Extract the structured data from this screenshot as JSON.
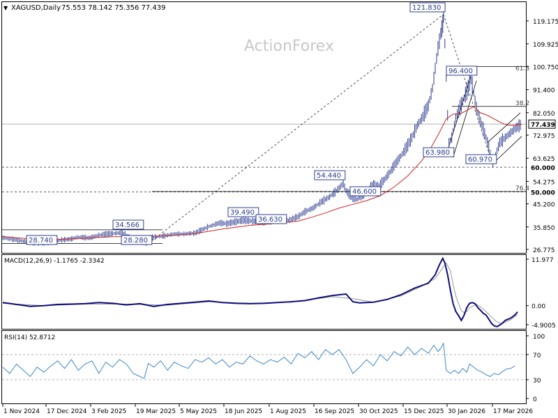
{
  "header": {
    "symbol_label": "XAGUSD,Daily",
    "ohlc_text": "75.553 78.142 75.356 77.439"
  },
  "watermark": "ActionForex",
  "colors": {
    "price": "#2c3b8f",
    "sma": "#cc2222",
    "macd": "#0d0d7a",
    "signal": "#999999",
    "rsi": "#3a86c8",
    "grid": "#888888",
    "label_bg": "#ffffff",
    "label_border": "#2c3b8f"
  },
  "chart_data": [
    {
      "type": "line",
      "panel": "price",
      "x_ticks": [
        "1 Nov 2024",
        "17 Dec 2024",
        "3 Feb 2025",
        "19 Mar 2025",
        "5 May 2025",
        "18 Jun 2025",
        "1 Aug 2025",
        "16 Sep 2025",
        "30 Oct 2025",
        "15 Dec 2025",
        "30 Jan 2026",
        "17 Mar 2026"
      ],
      "y_ticks": [
        "119.175",
        "109.925",
        "100.750",
        "91.400",
        "82.050",
        "72.975",
        "63.625",
        "54.275",
        "45.200",
        "35.850",
        "26.775"
      ],
      "ylim": [
        26.775,
        123
      ],
      "current_price": "77.439",
      "level_labels": [
        "60.000",
        "50.000"
      ],
      "fib_labels": [
        "61.8",
        "38.2",
        "76.4"
      ],
      "annotations": [
        "121.830",
        "96.400",
        "63.980",
        "60.970",
        "54.440",
        "46.600",
        "39.490",
        "36.630",
        "34.566",
        "28.740",
        "28.280"
      ],
      "price_path": [
        [
          0,
          31.5
        ],
        [
          10,
          30.6
        ],
        [
          20,
          29.6
        ],
        [
          30,
          29.2
        ],
        [
          40,
          30.4
        ],
        [
          50,
          31.0
        ],
        [
          55,
          31.8
        ],
        [
          63,
          31.4
        ],
        [
          70,
          32.5
        ],
        [
          78,
          33.1
        ],
        [
          87,
          33.5
        ],
        [
          95,
          31.0
        ],
        [
          100,
          30.0
        ],
        [
          103,
          29.4
        ],
        [
          106,
          31.5
        ],
        [
          115,
          32.0
        ],
        [
          125,
          33.0
        ],
        [
          132,
          33.0
        ],
        [
          140,
          33.4
        ],
        [
          150,
          36.0
        ],
        [
          158,
          37.5
        ],
        [
          163,
          37.2
        ],
        [
          170,
          38.0
        ],
        [
          175,
          38.5
        ],
        [
          183,
          38.2
        ],
        [
          190,
          37.8
        ],
        [
          197,
          38.4
        ],
        [
          203,
          38.9
        ],
        [
          208,
          38.5
        ],
        [
          215,
          40.0
        ],
        [
          220,
          42.0
        ],
        [
          226,
          43.5
        ],
        [
          232,
          46.0
        ],
        [
          238,
          48.0
        ],
        [
          244,
          51.0
        ],
        [
          248,
          53.5
        ],
        [
          250,
          50.5
        ],
        [
          254,
          48.0
        ],
        [
          258,
          47.0
        ],
        [
          262,
          48.5
        ],
        [
          266,
          51.0
        ],
        [
          270,
          53.0
        ],
        [
          274,
          52.5
        ],
        [
          278,
          55.0
        ],
        [
          282,
          58.0
        ],
        [
          286,
          61.5
        ],
        [
          290,
          64.5
        ],
        [
          294,
          68.0
        ],
        [
          298,
          72.0
        ],
        [
          302,
          77.0
        ],
        [
          306,
          80.5
        ],
        [
          310,
          85.0
        ],
        [
          313,
          92.0
        ],
        [
          315,
          100.0
        ],
        [
          317,
          108.0
        ],
        [
          319,
          114.0
        ],
        [
          320.5,
          118.0
        ],
        [
          321,
          121.8
        ],
        [
          322,
          110.0
        ],
        [
          323,
          96.0
        ],
        [
          324,
          81.0
        ],
        [
          325,
          70.0
        ],
        [
          327,
          72.0
        ],
        [
          330,
          80.0
        ],
        [
          333,
          84.0
        ],
        [
          336,
          88.0
        ],
        [
          339,
          92.0
        ],
        [
          341,
          96.4
        ],
        [
          343,
          90.0
        ],
        [
          345,
          84.0
        ],
        [
          347,
          80.0
        ],
        [
          349,
          77.0
        ],
        [
          352,
          72.0
        ],
        [
          355,
          66.0
        ],
        [
          357,
          61.0
        ],
        [
          359,
          65.0
        ],
        [
          362,
          70.0
        ],
        [
          366,
          72.0
        ],
        [
          370,
          74.0
        ],
        [
          374,
          76.0
        ],
        [
          378,
          77.44
        ]
      ],
      "sma_path": [
        [
          0,
          32.0
        ],
        [
          20,
          31.0
        ],
        [
          40,
          30.8
        ],
        [
          60,
          31.3
        ],
        [
          80,
          31.9
        ],
        [
          100,
          32.0
        ],
        [
          120,
          32.3
        ],
        [
          140,
          33.2
        ],
        [
          160,
          35.0
        ],
        [
          180,
          36.5
        ],
        [
          200,
          37.3
        ],
        [
          215,
          38.2
        ],
        [
          225,
          39.8
        ],
        [
          235,
          41.5
        ],
        [
          245,
          43.5
        ],
        [
          255,
          45.0
        ],
        [
          265,
          46.5
        ],
        [
          275,
          48.5
        ],
        [
          285,
          52.0
        ],
        [
          295,
          56.5
        ],
        [
          305,
          62.5
        ],
        [
          312,
          68.0
        ],
        [
          318,
          74.0
        ],
        [
          323,
          79.5
        ],
        [
          328,
          81.5
        ],
        [
          333,
          81.5
        ],
        [
          338,
          83.0
        ],
        [
          343,
          84.5
        ],
        [
          348,
          82.0
        ],
        [
          353,
          81.0
        ],
        [
          358,
          79.5
        ],
        [
          363,
          78.0
        ],
        [
          368,
          77.0
        ],
        [
          373,
          77.0
        ],
        [
          378,
          77.3
        ]
      ]
    },
    {
      "type": "line",
      "panel": "macd",
      "title": "MACD(12,26,9) -1.1765 -2.3342",
      "y_ticks": [
        "11.977",
        "0.00",
        "-4.9005"
      ],
      "ylim": [
        -7,
        13.5
      ],
      "macd_path": [
        [
          0,
          0.8
        ],
        [
          10,
          0.3
        ],
        [
          20,
          -0.2
        ],
        [
          30,
          0
        ],
        [
          40,
          0.3
        ],
        [
          50,
          0.4
        ],
        [
          60,
          0.5
        ],
        [
          70,
          0.8
        ],
        [
          80,
          0.6
        ],
        [
          90,
          0.2
        ],
        [
          100,
          0.5
        ],
        [
          110,
          -0.2
        ],
        [
          120,
          0.3
        ],
        [
          130,
          0.6
        ],
        [
          140,
          0.9
        ],
        [
          150,
          1.2
        ],
        [
          160,
          0.8
        ],
        [
          170,
          0.6
        ],
        [
          180,
          0.5
        ],
        [
          190,
          0.6
        ],
        [
          200,
          0.8
        ],
        [
          210,
          1.0
        ],
        [
          220,
          1.3
        ],
        [
          230,
          2.0
        ],
        [
          240,
          2.6
        ],
        [
          250,
          3.0
        ],
        [
          255,
          1.0
        ],
        [
          260,
          0.7
        ],
        [
          270,
          0.9
        ],
        [
          280,
          1.6
        ],
        [
          290,
          2.8
        ],
        [
          300,
          4.5
        ],
        [
          310,
          5.8
        ],
        [
          315,
          8.0
        ],
        [
          318,
          10.5
        ],
        [
          320.5,
          12.2
        ],
        [
          322,
          11.0
        ],
        [
          324,
          8.0
        ],
        [
          326,
          4.0
        ],
        [
          328,
          0.5
        ],
        [
          330,
          -1.5
        ],
        [
          332,
          -2.6
        ],
        [
          334,
          -3.8
        ],
        [
          336,
          -2.5
        ],
        [
          338,
          -0.5
        ],
        [
          340,
          0.6
        ],
        [
          342,
          0.8
        ],
        [
          344,
          0.5
        ],
        [
          346,
          -0.5
        ],
        [
          348,
          -1.2
        ],
        [
          350,
          -2.0
        ],
        [
          352,
          -2.4
        ],
        [
          354,
          -3.5
        ],
        [
          356,
          -4.6
        ],
        [
          358,
          -5.2
        ],
        [
          360,
          -5.4
        ],
        [
          362,
          -5.0
        ],
        [
          364,
          -4.5
        ],
        [
          366,
          -3.8
        ],
        [
          370,
          -3.2
        ],
        [
          373,
          -2.4
        ],
        [
          375,
          -1.6
        ]
      ],
      "signal_path": [
        [
          0,
          0.6
        ],
        [
          30,
          0.0
        ],
        [
          60,
          0.4
        ],
        [
          90,
          0.4
        ],
        [
          120,
          0.1
        ],
        [
          150,
          1.0
        ],
        [
          180,
          0.6
        ],
        [
          210,
          0.9
        ],
        [
          240,
          2.3
        ],
        [
          255,
          1.8
        ],
        [
          270,
          0.9
        ],
        [
          290,
          2.5
        ],
        [
          305,
          5.0
        ],
        [
          315,
          7.0
        ],
        [
          320,
          9.5
        ],
        [
          323,
          11.0
        ],
        [
          326,
          9.0
        ],
        [
          328,
          5.5
        ],
        [
          330,
          2.5
        ],
        [
          332,
          0.5
        ],
        [
          334,
          -1.3
        ],
        [
          336,
          -1.8
        ],
        [
          338,
          -1.5
        ],
        [
          340,
          -0.6
        ],
        [
          342,
          -0.2
        ],
        [
          345,
          0.3
        ],
        [
          348,
          -0.3
        ],
        [
          351,
          -1.2
        ],
        [
          354,
          -2.2
        ],
        [
          357,
          -3.3
        ],
        [
          360,
          -4.2
        ],
        [
          363,
          -4.6
        ],
        [
          366,
          -4.3
        ],
        [
          370,
          -3.6
        ],
        [
          375,
          -2.3
        ]
      ]
    },
    {
      "type": "line",
      "panel": "rsi",
      "title": "RSI(14) 52.8712",
      "y_ticks": [
        "100",
        "70",
        "30",
        "0"
      ],
      "ylim": [
        0,
        100
      ],
      "rsi_path": [
        [
          0,
          50
        ],
        [
          5,
          40
        ],
        [
          10,
          55
        ],
        [
          15,
          45
        ],
        [
          20,
          35
        ],
        [
          25,
          50
        ],
        [
          30,
          42
        ],
        [
          35,
          52
        ],
        [
          40,
          60
        ],
        [
          45,
          48
        ],
        [
          50,
          62
        ],
        [
          55,
          45
        ],
        [
          60,
          55
        ],
        [
          65,
          60
        ],
        [
          70,
          40
        ],
        [
          75,
          58
        ],
        [
          80,
          50
        ],
        [
          85,
          62
        ],
        [
          90,
          55
        ],
        [
          95,
          40
        ],
        [
          100,
          35
        ],
        [
          103,
          32
        ],
        [
          106,
          56
        ],
        [
          110,
          50
        ],
        [
          115,
          60
        ],
        [
          120,
          45
        ],
        [
          125,
          58
        ],
        [
          130,
          52
        ],
        [
          135,
          48
        ],
        [
          140,
          62
        ],
        [
          145,
          58
        ],
        [
          150,
          65
        ],
        [
          155,
          55
        ],
        [
          160,
          62
        ],
        [
          165,
          50
        ],
        [
          170,
          58
        ],
        [
          175,
          55
        ],
        [
          180,
          68
        ],
        [
          185,
          60
        ],
        [
          190,
          55
        ],
        [
          195,
          62
        ],
        [
          200,
          58
        ],
        [
          205,
          66
        ],
        [
          210,
          55
        ],
        [
          215,
          72
        ],
        [
          220,
          65
        ],
        [
          225,
          75
        ],
        [
          230,
          62
        ],
        [
          235,
          78
        ],
        [
          240,
          70
        ],
        [
          245,
          78
        ],
        [
          250,
          62
        ],
        [
          255,
          40
        ],
        [
          260,
          50
        ],
        [
          265,
          62
        ],
        [
          270,
          52
        ],
        [
          275,
          70
        ],
        [
          280,
          60
        ],
        [
          285,
          75
        ],
        [
          290,
          68
        ],
        [
          295,
          82
        ],
        [
          300,
          70
        ],
        [
          305,
          80
        ],
        [
          310,
          72
        ],
        [
          314,
          85
        ],
        [
          317,
          75
        ],
        [
          319,
          80
        ],
        [
          321,
          88
        ],
        [
          323,
          45
        ],
        [
          326,
          40
        ],
        [
          329,
          45
        ],
        [
          332,
          40
        ],
        [
          335,
          48
        ],
        [
          338,
          42
        ],
        [
          340,
          55
        ],
        [
          343,
          50
        ],
        [
          346,
          45
        ],
        [
          349,
          42
        ],
        [
          352,
          38
        ],
        [
          355,
          35
        ],
        [
          358,
          40
        ],
        [
          361,
          38
        ],
        [
          364,
          43
        ],
        [
          367,
          47
        ],
        [
          370,
          48
        ],
        [
          373,
          52
        ]
      ]
    }
  ]
}
